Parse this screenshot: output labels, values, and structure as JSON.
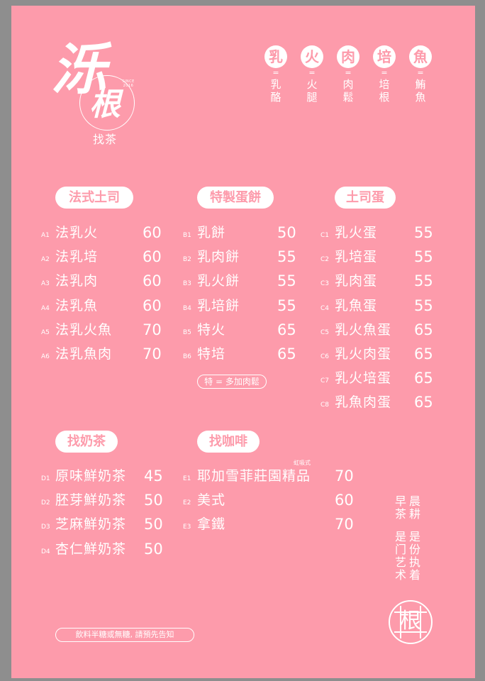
{
  "brand": {
    "logo_chars": [
      "泺",
      "根"
    ],
    "since": "SINCE 2016",
    "subtitle": "找茶"
  },
  "legend": [
    {
      "short": "乳",
      "eq": "=",
      "full": "乳酪"
    },
    {
      "short": "火",
      "eq": "=",
      "full": "火腿"
    },
    {
      "short": "肉",
      "eq": "=",
      "full": "肉鬆"
    },
    {
      "short": "培",
      "eq": "=",
      "full": "培根"
    },
    {
      "short": "魚",
      "eq": "=",
      "full": "鮪魚"
    }
  ],
  "sections": {
    "french_toast": {
      "title": "法式土司",
      "items": [
        {
          "code": "A1",
          "name": "法乳火",
          "price": "60"
        },
        {
          "code": "A2",
          "name": "法乳培",
          "price": "60"
        },
        {
          "code": "A3",
          "name": "法乳肉",
          "price": "60"
        },
        {
          "code": "A4",
          "name": "法乳魚",
          "price": "60"
        },
        {
          "code": "A5",
          "name": "法乳火魚",
          "price": "70"
        },
        {
          "code": "A6",
          "name": "法乳魚肉",
          "price": "70"
        }
      ]
    },
    "egg_pancake": {
      "title": "特製蛋餅",
      "items": [
        {
          "code": "B1",
          "name": "乳餅",
          "price": "50"
        },
        {
          "code": "B2",
          "name": "乳肉餅",
          "price": "55"
        },
        {
          "code": "B3",
          "name": "乳火餅",
          "price": "55"
        },
        {
          "code": "B4",
          "name": "乳培餅",
          "price": "55"
        },
        {
          "code": "B5",
          "name": "特火",
          "price": "65"
        },
        {
          "code": "B6",
          "name": "特培",
          "price": "65"
        }
      ],
      "note": "特 = 多加肉鬆"
    },
    "toast_egg": {
      "title": "土司蛋",
      "items": [
        {
          "code": "C1",
          "name": "乳火蛋",
          "price": "55"
        },
        {
          "code": "C2",
          "name": "乳培蛋",
          "price": "55"
        },
        {
          "code": "C3",
          "name": "乳肉蛋",
          "price": "55"
        },
        {
          "code": "C4",
          "name": "乳魚蛋",
          "price": "55"
        },
        {
          "code": "C5",
          "name": "乳火魚蛋",
          "price": "65"
        },
        {
          "code": "C6",
          "name": "乳火肉蛋",
          "price": "65"
        },
        {
          "code": "C7",
          "name": "乳火培蛋",
          "price": "65"
        },
        {
          "code": "C8",
          "name": "乳魚肉蛋",
          "price": "65"
        }
      ]
    },
    "milk_tea": {
      "title": "找奶茶",
      "items": [
        {
          "code": "D1",
          "name": "原味鮮奶茶",
          "price": "45"
        },
        {
          "code": "D2",
          "name": "胚芽鮮奶茶",
          "price": "50"
        },
        {
          "code": "D3",
          "name": "芝麻鮮奶茶",
          "price": "50"
        },
        {
          "code": "D4",
          "name": "杏仁鮮奶茶",
          "price": "50"
        }
      ]
    },
    "coffee": {
      "title": "找咖啡",
      "items": [
        {
          "code": "E1",
          "name": "耶加雪菲莊園精品",
          "price": "70",
          "note": "虹吸式"
        },
        {
          "code": "E2",
          "name": "美式",
          "price": "60"
        },
        {
          "code": "E3",
          "name": "拿鐵",
          "price": "70"
        }
      ]
    }
  },
  "slogan": {
    "col1": "早茶",
    "col2": "晨耕",
    "col3": "是门艺术",
    "col4": "是份执着"
  },
  "footer_note": "飲料半糖或無糖, 請預先告知",
  "seal_char": "根"
}
